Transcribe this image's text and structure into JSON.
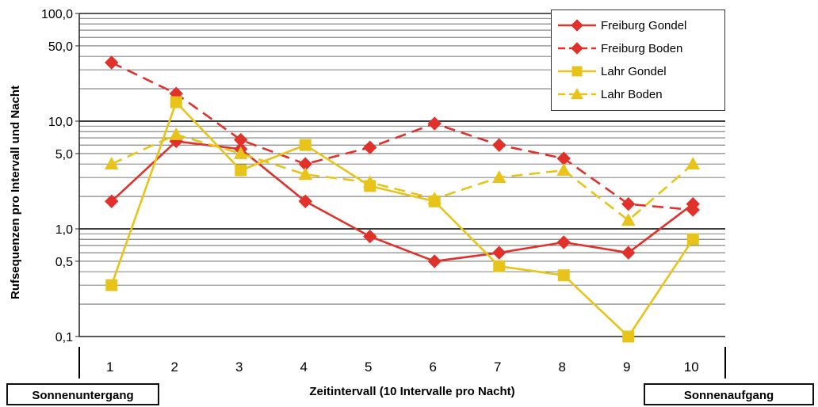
{
  "chart_data": {
    "type": "line",
    "x": [
      "1",
      "2",
      "3",
      "4",
      "5",
      "6",
      "7",
      "8",
      "9",
      "10"
    ],
    "ylabel": "Rufsequenzen pro Intervall und Nacht",
    "xlabel": "Zeitintervall (10 Intervalle pro Nacht)",
    "yscale": "log",
    "ylim": [
      0.1,
      100
    ],
    "ytick_labels": [
      "0,1",
      "0,5",
      "1,0",
      "5,0",
      "10,0",
      "50,0",
      "100,0"
    ],
    "ytick_values": [
      0.1,
      0.5,
      1,
      5,
      10,
      50,
      100
    ],
    "grid": true,
    "legend_position": "top-right",
    "series": [
      {
        "name": "Freiburg Gondel",
        "color": "#e0312b",
        "marker": "diamond",
        "dash": false,
        "values": [
          1.8,
          6.5,
          5.5,
          1.8,
          0.85,
          0.5,
          0.6,
          0.75,
          0.6,
          1.7
        ]
      },
      {
        "name": "Freiburg Boden",
        "color": "#e0312b",
        "marker": "diamond",
        "dash": true,
        "values": [
          35,
          18,
          6.7,
          4,
          5.7,
          9.5,
          6,
          4.5,
          1.7,
          1.5
        ]
      },
      {
        "name": "Lahr Gondel",
        "color": "#e8c41a",
        "marker": "square",
        "dash": false,
        "values": [
          0.3,
          15,
          3.5,
          6,
          2.5,
          1.8,
          0.45,
          0.37,
          0.1,
          0.8
        ]
      },
      {
        "name": "Lahr Boden",
        "color": "#e8c41a",
        "marker": "triangle",
        "dash": true,
        "values": [
          4,
          7.5,
          5,
          3.2,
          2.7,
          1.9,
          3,
          3.5,
          1.2,
          4
        ]
      }
    ]
  },
  "annotations": {
    "left_box": "Sonnenuntergang",
    "right_box": "Sonnenaufgang"
  }
}
